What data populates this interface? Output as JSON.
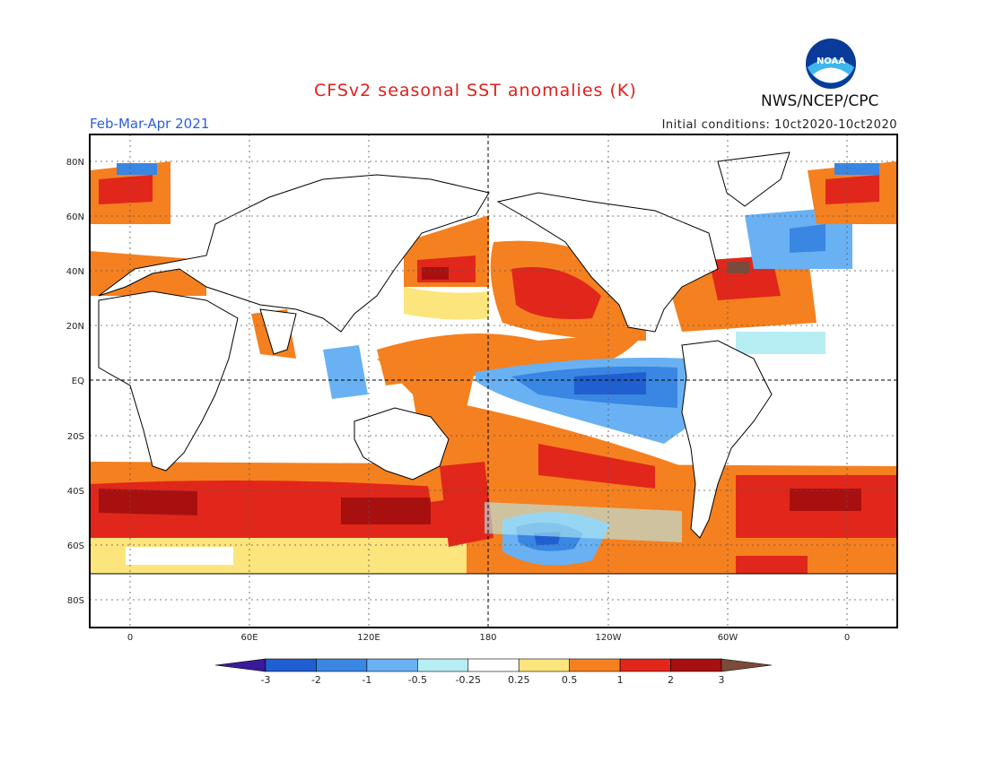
{
  "header": {
    "title": "CFSv2 seasonal SST anomalies (K)",
    "period": "Feb-Mar-Apr 2021",
    "initial_conditions": "Initial conditions: 10ct2020-10ct2020",
    "agency": "NWS/NCEP/CPC",
    "logo_text": "NOAA"
  },
  "map": {
    "lat_labels": [
      "80N",
      "60N",
      "40N",
      "20N",
      "EQ",
      "20S",
      "40S",
      "60S",
      "80S"
    ],
    "lon_labels": [
      "0",
      "60E",
      "120E",
      "180",
      "120W",
      "60W",
      "0"
    ],
    "colors": {
      "land": "#ffffff",
      "coast": "#000000",
      "grid": "#555555"
    }
  },
  "legend": {
    "tick_labels": [
      "-3",
      "-2",
      "-1",
      "-0.5",
      "-0.25",
      "0.25",
      "0.5",
      "1",
      "2",
      "3"
    ],
    "colors": [
      "#3a1a9a",
      "#1f5fcf",
      "#3a86e3",
      "#69b1f2",
      "#b6eef4",
      "#ffffff",
      "#fce57c",
      "#f5801f",
      "#e1271b",
      "#a81010",
      "#7a4b3a"
    ]
  }
}
